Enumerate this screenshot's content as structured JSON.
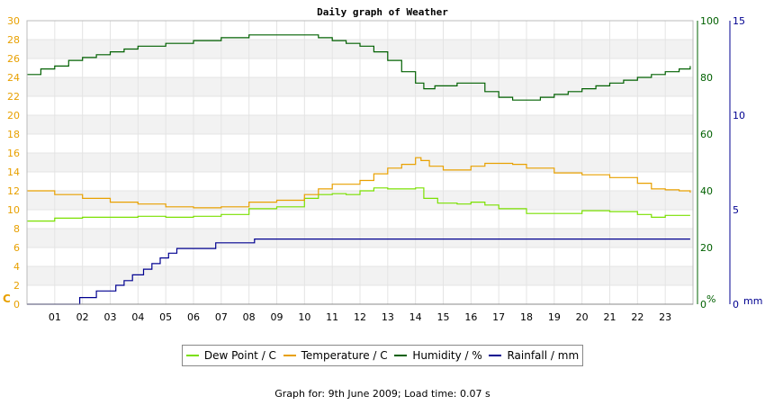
{
  "chart_data": {
    "type": "line",
    "title": "Daily graph of Weather",
    "left_axis": {
      "unit": "C",
      "ylim": [
        0,
        30
      ],
      "ticks": [
        0,
        2,
        4,
        6,
        8,
        10,
        12,
        14,
        16,
        18,
        20,
        22,
        24,
        26,
        28,
        30
      ],
      "color": "#e8a000"
    },
    "humidity_axis": {
      "unit": "%",
      "ylim": [
        0,
        100
      ],
      "ticks": [
        0,
        20,
        40,
        60,
        80,
        100
      ],
      "color": "#006000"
    },
    "rain_axis": {
      "unit": "mm",
      "ylim": [
        0,
        15
      ],
      "ticks": [
        0,
        5,
        10,
        15
      ],
      "color": "#000090"
    },
    "x_labels": [
      "01",
      "02",
      "03",
      "04",
      "05",
      "06",
      "07",
      "08",
      "09",
      "10",
      "11",
      "12",
      "13",
      "14",
      "15",
      "16",
      "17",
      "18",
      "19",
      "20",
      "21",
      "22",
      "23"
    ],
    "x_range": [
      0,
      24
    ],
    "series": [
      {
        "name": "Dew Point / C",
        "axis": "left",
        "color": "#7ae000",
        "x": [
          0,
          1,
          2,
          3,
          4,
          5,
          6,
          7,
          8,
          9,
          10,
          10.5,
          11,
          11.5,
          12,
          12.5,
          13,
          13.5,
          14,
          14.3,
          14.8,
          15.5,
          16,
          16.5,
          17,
          18,
          19,
          20,
          21,
          22,
          22.5,
          23,
          23.9
        ],
        "y": [
          8.8,
          9.1,
          9.2,
          9.2,
          9.3,
          9.2,
          9.3,
          9.5,
          10.1,
          10.3,
          11.2,
          11.6,
          11.7,
          11.6,
          12.0,
          12.3,
          12.2,
          12.2,
          12.3,
          11.2,
          10.7,
          10.6,
          10.8,
          10.5,
          10.1,
          9.6,
          9.6,
          9.9,
          9.8,
          9.5,
          9.2,
          9.4,
          9.4
        ]
      },
      {
        "name": "Temperature / C",
        "axis": "left",
        "color": "#e8a000",
        "x": [
          0,
          1,
          2,
          3,
          4,
          5,
          6,
          7,
          8,
          9,
          10,
          10.5,
          11,
          12,
          12.5,
          13,
          13.5,
          14,
          14.2,
          14.5,
          15,
          15.5,
          16,
          16.5,
          17,
          17.5,
          18,
          19,
          20,
          21,
          22,
          22.5,
          23,
          23.5,
          23.9
        ],
        "y": [
          12.0,
          11.6,
          11.2,
          10.8,
          10.6,
          10.3,
          10.2,
          10.3,
          10.8,
          11.0,
          11.6,
          12.2,
          12.7,
          13.1,
          13.8,
          14.4,
          14.8,
          15.5,
          15.2,
          14.6,
          14.2,
          14.2,
          14.6,
          14.9,
          14.9,
          14.8,
          14.4,
          13.9,
          13.7,
          13.4,
          12.8,
          12.2,
          12.1,
          12.0,
          11.8
        ]
      },
      {
        "name": "Humidity / %",
        "axis": "humidity",
        "color": "#006000",
        "x": [
          0,
          0.5,
          1,
          1.5,
          2,
          2.5,
          3,
          3.5,
          4,
          5,
          6,
          7,
          8,
          9,
          10,
          10.5,
          11,
          11.5,
          12,
          12.5,
          13,
          13.5,
          14,
          14.3,
          14.7,
          15,
          15.5,
          16,
          16.5,
          17,
          17.5,
          18,
          18.5,
          19,
          19.5,
          20,
          20.5,
          21,
          21.5,
          22,
          22.5,
          23,
          23.5,
          23.9
        ],
        "y": [
          81,
          83,
          84,
          86,
          87,
          88,
          89,
          90,
          91,
          92,
          93,
          94,
          95,
          95,
          95,
          94,
          93,
          92,
          91,
          89,
          86,
          82,
          78,
          76,
          77,
          77,
          78,
          78,
          75,
          73,
          72,
          72,
          73,
          74,
          75,
          76,
          77,
          78,
          79,
          80,
          81,
          82,
          83,
          84
        ]
      },
      {
        "name": "Rainfall / mm",
        "axis": "rain",
        "color": "#000090",
        "x": [
          0,
          1,
          1.9,
          2.5,
          3.2,
          3.5,
          3.8,
          4.2,
          4.5,
          4.8,
          5.1,
          5.4,
          6,
          6.8,
          7.5,
          8.2,
          9,
          10,
          12,
          14,
          16,
          18,
          20,
          22,
          23.9
        ],
        "y": [
          0,
          0,
          0.35,
          0.7,
          1.0,
          1.25,
          1.55,
          1.85,
          2.15,
          2.45,
          2.7,
          2.95,
          2.95,
          3.25,
          3.25,
          3.45,
          3.45,
          3.45,
          3.45,
          3.45,
          3.45,
          3.45,
          3.45,
          3.45,
          3.45
        ]
      }
    ],
    "grid": true
  },
  "footer": "Graph for: 9th June 2009; Load time: 0.07 s"
}
